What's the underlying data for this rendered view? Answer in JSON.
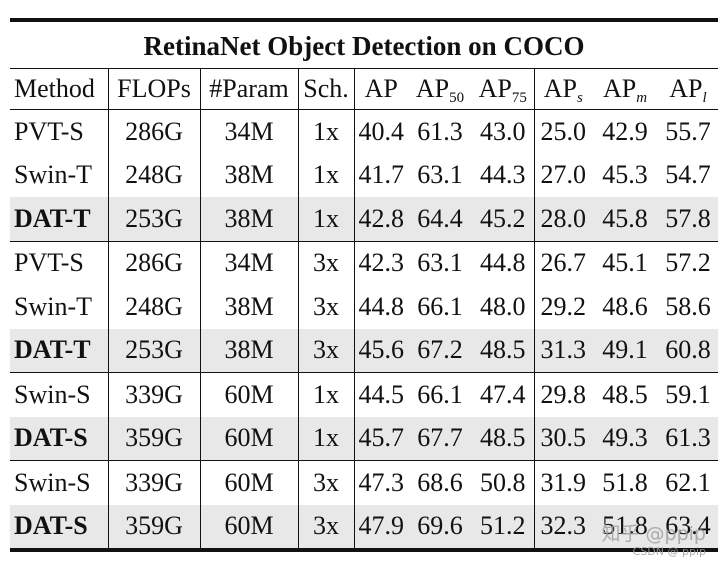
{
  "table": {
    "title": "RetinaNet Object Detection on COCO",
    "headers": {
      "method": "Method",
      "flops": "FLOPs",
      "param": "#Param",
      "sch": "Sch.",
      "ap": "AP",
      "ap50": {
        "base": "AP",
        "sub": "50"
      },
      "ap75": {
        "base": "AP",
        "sub": "75"
      },
      "aps": {
        "base": "AP",
        "sub": "s"
      },
      "apm": {
        "base": "AP",
        "sub": "m"
      },
      "apl": {
        "base": "AP",
        "sub": "l"
      }
    },
    "rows": [
      {
        "method": "PVT-S",
        "flops": "286G",
        "param": "34M",
        "sch": "1x",
        "ap": "40.4",
        "ap50": "61.3",
        "ap75": "43.0",
        "aps": "25.0",
        "apm": "42.9",
        "apl": "55.7"
      },
      {
        "method": "Swin-T",
        "flops": "248G",
        "param": "38M",
        "sch": "1x",
        "ap": "41.7",
        "ap50": "63.1",
        "ap75": "44.3",
        "aps": "27.0",
        "apm": "45.3",
        "apl": "54.7"
      },
      {
        "method": "DAT-T",
        "flops": "253G",
        "param": "38M",
        "sch": "1x",
        "ap": "42.8",
        "ap50": "64.4",
        "ap75": "45.2",
        "aps": "28.0",
        "apm": "45.8",
        "apl": "57.8"
      },
      {
        "method": "PVT-S",
        "flops": "286G",
        "param": "34M",
        "sch": "3x",
        "ap": "42.3",
        "ap50": "63.1",
        "ap75": "44.8",
        "aps": "26.7",
        "apm": "45.1",
        "apl": "57.2"
      },
      {
        "method": "Swin-T",
        "flops": "248G",
        "param": "38M",
        "sch": "3x",
        "ap": "44.8",
        "ap50": "66.1",
        "ap75": "48.0",
        "aps": "29.2",
        "apm": "48.6",
        "apl": "58.6"
      },
      {
        "method": "DAT-T",
        "flops": "253G",
        "param": "38M",
        "sch": "3x",
        "ap": "45.6",
        "ap50": "67.2",
        "ap75": "48.5",
        "aps": "31.3",
        "apm": "49.1",
        "apl": "60.8"
      },
      {
        "method": "Swin-S",
        "flops": "339G",
        "param": "60M",
        "sch": "1x",
        "ap": "44.5",
        "ap50": "66.1",
        "ap75": "47.4",
        "aps": "29.8",
        "apm": "48.5",
        "apl": "59.1"
      },
      {
        "method": "DAT-S",
        "flops": "359G",
        "param": "60M",
        "sch": "1x",
        "ap": "45.7",
        "ap50": "67.7",
        "ap75": "48.5",
        "aps": "30.5",
        "apm": "49.3",
        "apl": "61.3"
      },
      {
        "method": "Swin-S",
        "flops": "339G",
        "param": "60M",
        "sch": "3x",
        "ap": "47.3",
        "ap50": "68.6",
        "ap75": "50.8",
        "aps": "31.9",
        "apm": "51.8",
        "apl": "62.1"
      },
      {
        "method": "DAT-S",
        "flops": "359G",
        "param": "60M",
        "sch": "3x",
        "ap": "47.9",
        "ap50": "69.6",
        "ap75": "51.2",
        "aps": "32.3",
        "apm": "51.8",
        "apl": "63.4"
      }
    ]
  },
  "watermark": {
    "line1": "知乎 @ppip",
    "line2": "CSDN @ ppip"
  }
}
